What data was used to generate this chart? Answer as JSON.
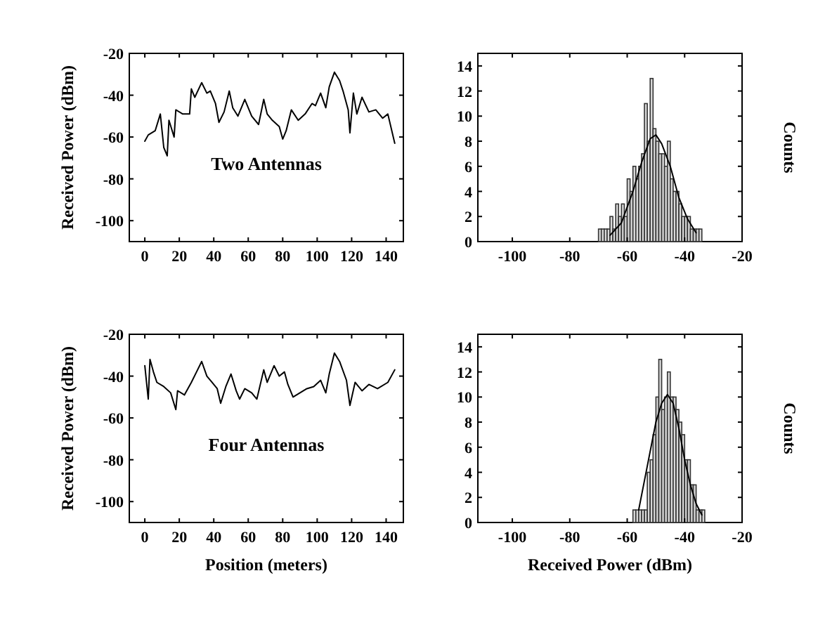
{
  "chart_data": [
    {
      "type": "line",
      "ylabel": "Received Power (dBm)",
      "annotations": [
        "Two Antennas"
      ],
      "xlim": [
        -9,
        150
      ],
      "ylim": [
        -110,
        -20
      ],
      "xticks": [
        0,
        20,
        40,
        60,
        80,
        100,
        120,
        140
      ],
      "yticks": [
        -20,
        -40,
        -60,
        -80,
        -100
      ],
      "series": [
        {
          "color": "#000000",
          "x": [
            0,
            2,
            6,
            9,
            11,
            13,
            14,
            17,
            18,
            22,
            26,
            27,
            29,
            33,
            36,
            38,
            41,
            43,
            46,
            49,
            51,
            54,
            58,
            62,
            66,
            69,
            71,
            74,
            78,
            80,
            82,
            85,
            89,
            93,
            97,
            99,
            102,
            105,
            107,
            110,
            113,
            115,
            118,
            119,
            121,
            123,
            126,
            130,
            134,
            138,
            141,
            145
          ],
          "values": [
            -62,
            -59,
            -57,
            -49,
            -65,
            -69,
            -52,
            -60,
            -47,
            -49,
            -49,
            -37,
            -41,
            -34,
            -39,
            -38,
            -44,
            -53,
            -48,
            -38,
            -46,
            -50,
            -42,
            -50,
            -54,
            -42,
            -49,
            -52,
            -55,
            -61,
            -57,
            -47,
            -52,
            -49,
            -44,
            -45,
            -39,
            -46,
            -36,
            -29,
            -33,
            -38,
            -47,
            -58,
            -39,
            -49,
            -41,
            -48,
            -47,
            -51,
            -49,
            -63
          ]
        }
      ]
    },
    {
      "type": "histogram",
      "ylabel": "Counts",
      "xlim": [
        -112,
        -20
      ],
      "ylim": [
        0,
        15
      ],
      "xticks": [
        -100,
        -80,
        -60,
        -40,
        -20
      ],
      "yticks": [
        0,
        2,
        4,
        6,
        8,
        10,
        12,
        14
      ],
      "color": "#d9d9d9",
      "bins": [
        -70,
        -69,
        -68,
        -67,
        -66,
        -65,
        -64,
        -63,
        -62,
        -61,
        -60,
        -59,
        -58,
        -57,
        -56,
        -55,
        -54,
        -53,
        -52,
        -51,
        -50,
        -49,
        -48,
        -47,
        -46,
        -45,
        -44,
        -43,
        -42,
        -41,
        -40,
        -39,
        -38,
        -37,
        -36,
        -35,
        -34
      ],
      "values": [
        1,
        1,
        1,
        1,
        2,
        1,
        3,
        2,
        3,
        2,
        5,
        4,
        6,
        5,
        6,
        7,
        11,
        8,
        13,
        9,
        8,
        7,
        7,
        6,
        8,
        5,
        4,
        4,
        3,
        2,
        2,
        2,
        1,
        1,
        1,
        1
      ],
      "series": [
        {
          "type": "line",
          "color": "#000000",
          "x": [
            -66,
            -62,
            -58,
            -55,
            -52,
            -50,
            -48,
            -45,
            -42,
            -39,
            -36
          ],
          "values": [
            0.5,
            1.5,
            4,
            6.3,
            8.2,
            8.5,
            7.8,
            6,
            3.5,
            1.8,
            0.7
          ]
        }
      ]
    },
    {
      "type": "line",
      "ylabel": "Received Power (dBm)",
      "xlabel": "Position (meters)",
      "annotations": [
        "Four Antennas"
      ],
      "xlim": [
        -9,
        150
      ],
      "ylim": [
        -110,
        -20
      ],
      "xticks": [
        0,
        20,
        40,
        60,
        80,
        100,
        120,
        140
      ],
      "yticks": [
        -20,
        -40,
        -60,
        -80,
        -100
      ],
      "series": [
        {
          "color": "#000000",
          "x": [
            0,
            2,
            3,
            5,
            7,
            11,
            15,
            18,
            19,
            23,
            27,
            30,
            33,
            36,
            39,
            42,
            44,
            47,
            50,
            53,
            55,
            58,
            62,
            65,
            69,
            71,
            75,
            78,
            81,
            83,
            86,
            90,
            94,
            98,
            102,
            105,
            107,
            110,
            113,
            117,
            119,
            122,
            126,
            130,
            135,
            141,
            145
          ],
          "values": [
            -35,
            -51,
            -32,
            -38,
            -43,
            -45,
            -48,
            -56,
            -47,
            -49,
            -43,
            -38,
            -33,
            -40,
            -43,
            -46,
            -53,
            -45,
            -39,
            -47,
            -51,
            -46,
            -48,
            -51,
            -37,
            -43,
            -35,
            -40,
            -38,
            -44,
            -50,
            -48,
            -46,
            -45,
            -42,
            -48,
            -39,
            -29,
            -33,
            -42,
            -54,
            -43,
            -47,
            -44,
            -46,
            -43,
            -37
          ]
        }
      ]
    },
    {
      "type": "histogram",
      "ylabel": "Counts",
      "xlabel": "Received Power (dBm)",
      "xlim": [
        -112,
        -20
      ],
      "ylim": [
        0,
        15
      ],
      "xticks": [
        -100,
        -80,
        -60,
        -40,
        -20
      ],
      "yticks": [
        0,
        2,
        4,
        6,
        8,
        10,
        12,
        14
      ],
      "color": "#d9d9d9",
      "bins": [
        -58,
        -57,
        -56,
        -55,
        -54,
        -53,
        -52,
        -51,
        -50,
        -49,
        -48,
        -47,
        -46,
        -45,
        -44,
        -43,
        -42,
        -41,
        -40,
        -39,
        -38,
        -37,
        -36,
        -35,
        -34,
        -33
      ],
      "values": [
        1,
        1,
        1,
        1,
        1,
        4,
        5,
        7,
        10,
        13,
        9,
        10,
        12,
        10,
        10,
        9,
        8,
        7,
        5,
        5,
        3,
        3,
        1,
        1,
        1
      ],
      "series": [
        {
          "type": "line",
          "color": "#000000",
          "x": [
            -56,
            -53,
            -50,
            -48,
            -46,
            -44,
            -42,
            -40,
            -38,
            -36,
            -34
          ],
          "values": [
            1,
            4.5,
            8,
            9.5,
            10.2,
            9.5,
            7.5,
            5,
            3,
            1.5,
            0.6
          ]
        }
      ]
    }
  ]
}
